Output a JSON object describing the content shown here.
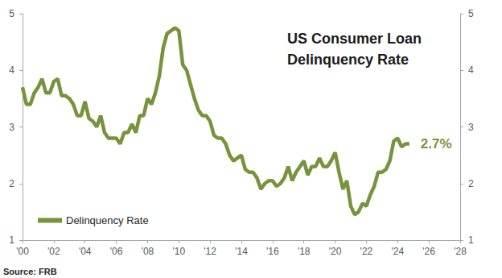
{
  "chart_data": {
    "type": "line",
    "title": "US Consumer Loan Delinquency Rate",
    "source": "Source: FRB",
    "annotation": "2.7%",
    "legend": "bottom-left",
    "grid": false,
    "xlim": [
      2000,
      2028
    ],
    "xticks": [
      {
        "value": 2000,
        "label": "'00"
      },
      {
        "value": 2002,
        "label": "'02"
      },
      {
        "value": 2004,
        "label": "'04"
      },
      {
        "value": 2006,
        "label": "'06"
      },
      {
        "value": 2008,
        "label": "'08"
      },
      {
        "value": 2010,
        "label": "'10"
      },
      {
        "value": 2012,
        "label": "'12"
      },
      {
        "value": 2014,
        "label": "'14"
      },
      {
        "value": 2016,
        "label": "'16"
      },
      {
        "value": 2018,
        "label": "'18"
      },
      {
        "value": 2020,
        "label": "'20"
      },
      {
        "value": 2022,
        "label": "'22"
      },
      {
        "value": 2024,
        "label": "'24"
      },
      {
        "value": 2026,
        "label": "'26"
      },
      {
        "value": 2028,
        "label": "'28"
      }
    ],
    "ylim": [
      1,
      5
    ],
    "yticks": [
      1,
      2,
      3,
      4,
      5
    ],
    "x": [
      2000,
      2000.25,
      2000.5,
      2000.75,
      2001,
      2001.25,
      2001.5,
      2001.75,
      2002,
      2002.25,
      2002.5,
      2002.75,
      2003,
      2003.25,
      2003.5,
      2003.75,
      2004,
      2004.25,
      2004.5,
      2004.75,
      2005,
      2005.25,
      2005.5,
      2005.75,
      2006,
      2006.25,
      2006.5,
      2006.75,
      2007,
      2007.25,
      2007.5,
      2007.75,
      2008,
      2008.25,
      2008.5,
      2008.75,
      2009,
      2009.25,
      2009.5,
      2009.75,
      2010,
      2010.25,
      2010.5,
      2010.75,
      2011,
      2011.25,
      2011.5,
      2011.75,
      2012,
      2012.25,
      2012.5,
      2012.75,
      2013,
      2013.25,
      2013.5,
      2013.75,
      2014,
      2014.25,
      2014.5,
      2014.75,
      2015,
      2015.25,
      2015.5,
      2015.75,
      2016,
      2016.25,
      2016.5,
      2016.75,
      2017,
      2017.25,
      2017.5,
      2017.75,
      2018,
      2018.25,
      2018.5,
      2018.75,
      2019,
      2019.25,
      2019.5,
      2019.75,
      2020,
      2020.25,
      2020.5,
      2020.75,
      2021,
      2021.25,
      2021.5,
      2021.75,
      2022,
      2022.25,
      2022.5,
      2022.75,
      2023,
      2023.25,
      2023.5,
      2023.75,
      2024,
      2024.25,
      2024.5,
      2024.75
    ],
    "series": [
      {
        "name": "Delinquency Rate",
        "color": "#77933c",
        "values": [
          3.7,
          3.4,
          3.4,
          3.6,
          3.7,
          3.85,
          3.6,
          3.6,
          3.8,
          3.85,
          3.55,
          3.55,
          3.5,
          3.4,
          3.2,
          3.2,
          3.45,
          3.15,
          3.1,
          3.0,
          3.2,
          2.9,
          2.8,
          2.8,
          2.8,
          2.7,
          2.9,
          2.9,
          3.05,
          2.9,
          3.2,
          3.2,
          3.5,
          3.4,
          3.6,
          3.9,
          4.4,
          4.65,
          4.7,
          4.75,
          4.7,
          4.1,
          4.0,
          3.75,
          3.5,
          3.3,
          3.2,
          3.2,
          3.1,
          2.85,
          2.8,
          2.8,
          2.7,
          2.5,
          2.4,
          2.45,
          2.5,
          2.25,
          2.2,
          2.2,
          2.1,
          1.9,
          2.0,
          2.05,
          2.05,
          1.95,
          2.0,
          2.1,
          2.3,
          2.05,
          2.2,
          2.3,
          2.4,
          2.15,
          2.3,
          2.3,
          2.45,
          2.3,
          2.3,
          2.4,
          2.55,
          2.2,
          1.9,
          2.05,
          1.6,
          1.45,
          1.5,
          1.65,
          1.6,
          1.8,
          1.95,
          2.2,
          2.2,
          2.25,
          2.4,
          2.75,
          2.8,
          2.65,
          2.7,
          2.7
        ]
      }
    ]
  }
}
